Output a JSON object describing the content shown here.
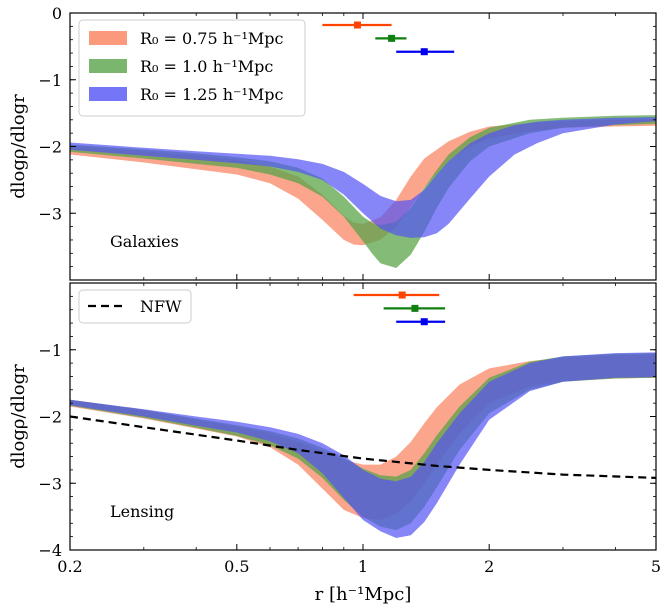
{
  "chart_data": {
    "type": "area",
    "xscale": "log",
    "xlim": [
      0.2,
      5
    ],
    "xlabel": "r [h⁻¹Mpc]",
    "xticks": [
      0.2,
      0.5,
      1,
      2,
      5
    ],
    "xtick_labels": [
      "0.2",
      "0.5",
      "1",
      "2",
      "5"
    ],
    "panels": [
      {
        "name": "galaxies",
        "annotation": "Galaxies",
        "ylabel": "dlogρ/dlogr",
        "ylim": [
          -4,
          0
        ],
        "yticks": [
          0,
          -1,
          -2,
          -3
        ],
        "ytick_labels": [
          "0",
          "−1",
          "−2",
          "−3"
        ],
        "legend": {
          "position": "top-left",
          "entries": [
            {
              "label": "R₀ = 0.75 h⁻¹Mpc",
              "color": "#fa7f5c"
            },
            {
              "label": "R₀ = 1.0 h⁻¹Mpc",
              "color": "#5aa44a"
            },
            {
              "label": "R₀ = 1.25 h⁻¹Mpc",
              "color": "#5353f5"
            }
          ]
        },
        "bands": [
          {
            "color": "#fa7f5c",
            "opacity": 0.7,
            "x": [
              0.2,
              0.3,
              0.4,
              0.5,
              0.6,
              0.7,
              0.8,
              0.9,
              0.95,
              1.0,
              1.1,
              1.2,
              1.3,
              1.4,
              1.6,
              1.8,
              2.0,
              2.5,
              3.0,
              4.0,
              5.0
            ],
            "upper": [
              -1.99,
              -2.07,
              -2.13,
              -2.2,
              -2.3,
              -2.45,
              -2.72,
              -3.04,
              -3.14,
              -3.16,
              -3.06,
              -2.8,
              -2.45,
              -2.18,
              -1.92,
              -1.78,
              -1.7,
              -1.65,
              -1.62,
              -1.6,
              -1.59
            ],
            "lower": [
              -2.12,
              -2.24,
              -2.34,
              -2.42,
              -2.55,
              -2.78,
              -3.1,
              -3.4,
              -3.47,
              -3.48,
              -3.4,
              -3.2,
              -2.9,
              -2.62,
              -2.22,
              -2.0,
              -1.88,
              -1.77,
              -1.72,
              -1.7,
              -1.69
            ]
          },
          {
            "color": "#5aa44a",
            "opacity": 0.75,
            "x": [
              0.2,
              0.3,
              0.4,
              0.5,
              0.6,
              0.7,
              0.8,
              0.9,
              1.0,
              1.05,
              1.1,
              1.2,
              1.3,
              1.4,
              1.5,
              1.6,
              1.8,
              2.0,
              2.5,
              3.0,
              4.0,
              5.0
            ],
            "upper": [
              -1.97,
              -2.04,
              -2.1,
              -2.16,
              -2.22,
              -2.32,
              -2.48,
              -2.75,
              -3.05,
              -3.14,
              -3.18,
              -3.13,
              -2.92,
              -2.62,
              -2.35,
              -2.12,
              -1.86,
              -1.72,
              -1.6,
              -1.57,
              -1.54,
              -1.53
            ],
            "lower": [
              -2.08,
              -2.18,
              -2.26,
              -2.32,
              -2.42,
              -2.55,
              -2.75,
              -3.05,
              -3.42,
              -3.6,
              -3.75,
              -3.82,
              -3.62,
              -3.28,
              -2.92,
              -2.62,
              -2.22,
              -2.0,
              -1.8,
              -1.72,
              -1.68,
              -1.66
            ]
          },
          {
            "color": "#5353f5",
            "opacity": 0.7,
            "x": [
              0.2,
              0.3,
              0.4,
              0.5,
              0.6,
              0.7,
              0.8,
              0.9,
              1.0,
              1.1,
              1.2,
              1.3,
              1.4,
              1.5,
              1.6,
              1.8,
              2.0,
              2.3,
              2.6,
              3.0,
              4.0,
              5.0
            ],
            "upper": [
              -1.94,
              -2.02,
              -2.07,
              -2.11,
              -2.14,
              -2.19,
              -2.26,
              -2.38,
              -2.56,
              -2.74,
              -2.82,
              -2.8,
              -2.65,
              -2.42,
              -2.22,
              -1.95,
              -1.8,
              -1.68,
              -1.63,
              -1.6,
              -1.57,
              -1.56
            ],
            "lower": [
              -2.05,
              -2.14,
              -2.2,
              -2.25,
              -2.3,
              -2.38,
              -2.5,
              -2.72,
              -3.0,
              -3.23,
              -3.33,
              -3.37,
              -3.36,
              -3.3,
              -3.16,
              -2.78,
              -2.45,
              -2.12,
              -1.95,
              -1.8,
              -1.67,
              -1.62
            ]
          }
        ],
        "points": [
          {
            "color": "#ff4400",
            "x": 0.97,
            "xmin": 0.8,
            "xmax": 1.17,
            "y": -0.18
          },
          {
            "color": "#0f7f0f",
            "x": 1.17,
            "xmin": 1.07,
            "xmax": 1.27,
            "y": -0.38
          },
          {
            "color": "#0000ee",
            "x": 1.4,
            "xmin": 1.2,
            "xmax": 1.65,
            "y": -0.58
          }
        ]
      },
      {
        "name": "lensing",
        "annotation": "Lensing",
        "ylabel": "dlogρ/dlogr",
        "ylim": [
          -4,
          0
        ],
        "yticks": [
          -1,
          -2,
          -3,
          -4
        ],
        "ytick_labels": [
          "−1",
          "−2",
          "−3",
          "−4"
        ],
        "legend": {
          "position": "top-left",
          "entries": [
            {
              "label": "NFW",
              "style": "dashed",
              "color": "#000000"
            }
          ]
        },
        "nfw": {
          "x": [
            0.2,
            0.3,
            0.5,
            0.7,
            1.0,
            1.5,
            2.0,
            3.0,
            5.0
          ],
          "y": [
            -2.0,
            -2.16,
            -2.36,
            -2.5,
            -2.63,
            -2.74,
            -2.8,
            -2.87,
            -2.92
          ]
        },
        "bands": [
          {
            "color": "#fa7f5c",
            "opacity": 0.7,
            "x": [
              0.2,
              0.3,
              0.4,
              0.5,
              0.6,
              0.7,
              0.8,
              0.9,
              1.0,
              1.1,
              1.2,
              1.3,
              1.4,
              1.5,
              1.7,
              2.0,
              2.5,
              3.0,
              4.0,
              5.0
            ],
            "upper": [
              -1.75,
              -1.9,
              -2.05,
              -2.15,
              -2.25,
              -2.38,
              -2.52,
              -2.65,
              -2.72,
              -2.72,
              -2.6,
              -2.38,
              -2.1,
              -1.86,
              -1.52,
              -1.28,
              -1.17,
              -1.12,
              -1.08,
              -1.07
            ],
            "lower": [
              -1.85,
              -2.03,
              -2.18,
              -2.3,
              -2.46,
              -2.72,
              -3.08,
              -3.4,
              -3.52,
              -3.55,
              -3.45,
              -3.27,
              -3.0,
              -2.72,
              -2.25,
              -1.8,
              -1.55,
              -1.47,
              -1.43,
              -1.42
            ]
          },
          {
            "color": "#5aa44a",
            "opacity": 0.75,
            "x": [
              0.2,
              0.3,
              0.4,
              0.5,
              0.6,
              0.7,
              0.8,
              0.9,
              1.0,
              1.1,
              1.2,
              1.3,
              1.4,
              1.5,
              1.7,
              2.0,
              2.5,
              3.0,
              4.0,
              5.0
            ],
            "upper": [
              -1.75,
              -1.9,
              -2.03,
              -2.13,
              -2.22,
              -2.33,
              -2.47,
              -2.62,
              -2.78,
              -2.88,
              -2.9,
              -2.8,
              -2.55,
              -2.28,
              -1.85,
              -1.42,
              -1.18,
              -1.1,
              -1.06,
              -1.05
            ],
            "lower": [
              -1.84,
              -2.02,
              -2.17,
              -2.29,
              -2.43,
              -2.63,
              -2.92,
              -3.25,
              -3.5,
              -3.65,
              -3.7,
              -3.6,
              -3.35,
              -3.06,
              -2.5,
              -1.95,
              -1.6,
              -1.48,
              -1.43,
              -1.42
            ]
          },
          {
            "color": "#5353f5",
            "opacity": 0.7,
            "x": [
              0.2,
              0.3,
              0.4,
              0.5,
              0.6,
              0.7,
              0.8,
              0.9,
              1.0,
              1.1,
              1.2,
              1.3,
              1.4,
              1.5,
              1.7,
              2.0,
              2.5,
              3.0,
              4.0,
              5.0
            ],
            "upper": [
              -1.75,
              -1.89,
              -2.0,
              -2.08,
              -2.16,
              -2.26,
              -2.4,
              -2.58,
              -2.8,
              -2.93,
              -2.97,
              -2.9,
              -2.68,
              -2.4,
              -1.95,
              -1.48,
              -1.2,
              -1.1,
              -1.05,
              -1.04
            ],
            "lower": [
              -1.83,
              -2.0,
              -2.14,
              -2.24,
              -2.37,
              -2.55,
              -2.85,
              -3.22,
              -3.55,
              -3.72,
              -3.82,
              -3.78,
              -3.58,
              -3.3,
              -2.72,
              -2.05,
              -1.62,
              -1.48,
              -1.42,
              -1.41
            ]
          }
        ],
        "points": [
          {
            "color": "#ff4400",
            "x": 1.24,
            "xmin": 0.95,
            "xmax": 1.52,
            "y": -0.18
          },
          {
            "color": "#0f7f0f",
            "x": 1.33,
            "xmin": 1.12,
            "xmax": 1.57,
            "y": -0.38
          },
          {
            "color": "#0000ee",
            "x": 1.4,
            "xmin": 1.2,
            "xmax": 1.57,
            "y": -0.58
          }
        ]
      }
    ]
  }
}
